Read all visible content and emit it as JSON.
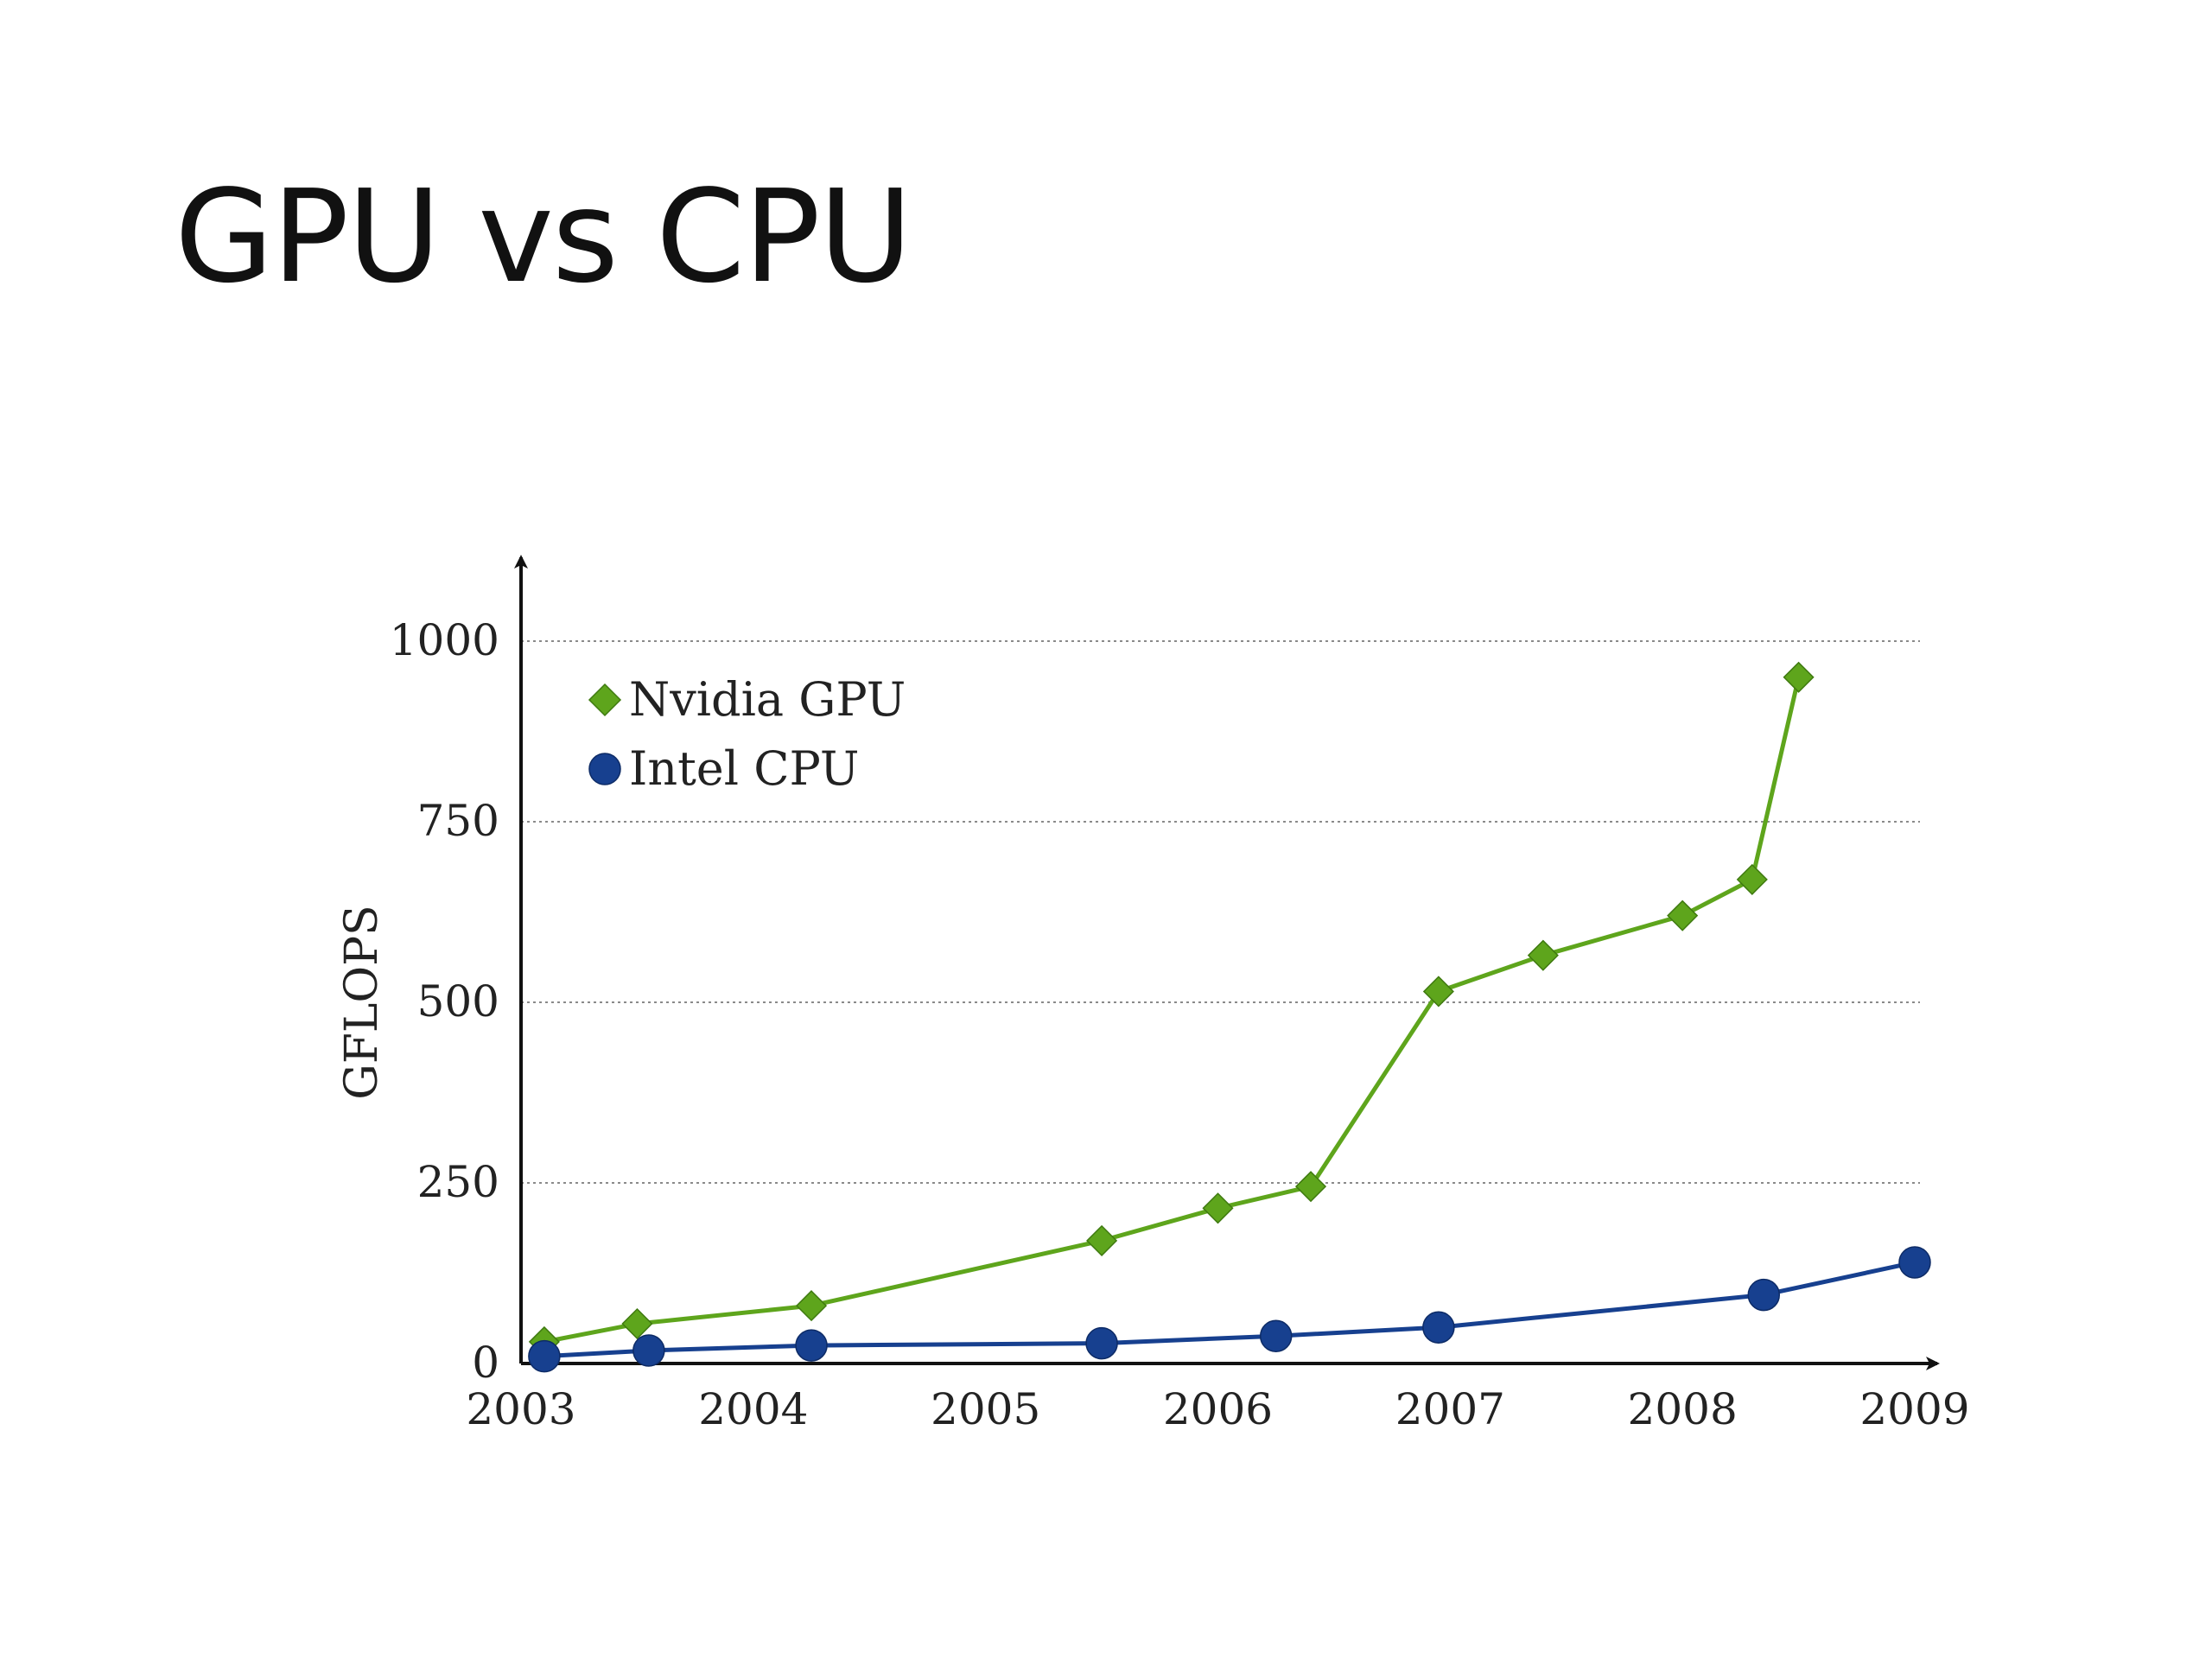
{
  "slide": {
    "title": "GPU vs CPU"
  },
  "chart_data": {
    "type": "line",
    "title": "",
    "xlabel": "",
    "ylabel": "GFLOPS",
    "xlim": [
      2003,
      2009
    ],
    "ylim": [
      0,
      1000
    ],
    "x_ticks": [
      "2003",
      "2004",
      "2005",
      "2006",
      "2007",
      "2008",
      "2009"
    ],
    "y_ticks": [
      "0",
      "250",
      "500",
      "750",
      "1000"
    ],
    "grid": "horizontal dotted",
    "legend_position": "top-left",
    "series": [
      {
        "name": "Nvidia GPU",
        "color": "#5ea51c",
        "marker": "diamond",
        "points": [
          {
            "x": 2003.1,
            "y": 30
          },
          {
            "x": 2003.5,
            "y": 55
          },
          {
            "x": 2004.25,
            "y": 80
          },
          {
            "x": 2005.5,
            "y": 170
          },
          {
            "x": 2006.0,
            "y": 215
          },
          {
            "x": 2006.4,
            "y": 245
          },
          {
            "x": 2006.95,
            "y": 515
          },
          {
            "x": 2007.4,
            "y": 565
          },
          {
            "x": 2008.0,
            "y": 620
          },
          {
            "x": 2008.3,
            "y": 670
          },
          {
            "x": 2008.5,
            "y": 950
          }
        ]
      },
      {
        "name": "Intel CPU",
        "color": "#17408f",
        "marker": "circle",
        "points": [
          {
            "x": 2003.1,
            "y": 10
          },
          {
            "x": 2003.55,
            "y": 18
          },
          {
            "x": 2004.25,
            "y": 25
          },
          {
            "x": 2005.5,
            "y": 28
          },
          {
            "x": 2006.25,
            "y": 38
          },
          {
            "x": 2006.95,
            "y": 50
          },
          {
            "x": 2008.35,
            "y": 95
          },
          {
            "x": 2009.0,
            "y": 140
          }
        ]
      }
    ]
  }
}
